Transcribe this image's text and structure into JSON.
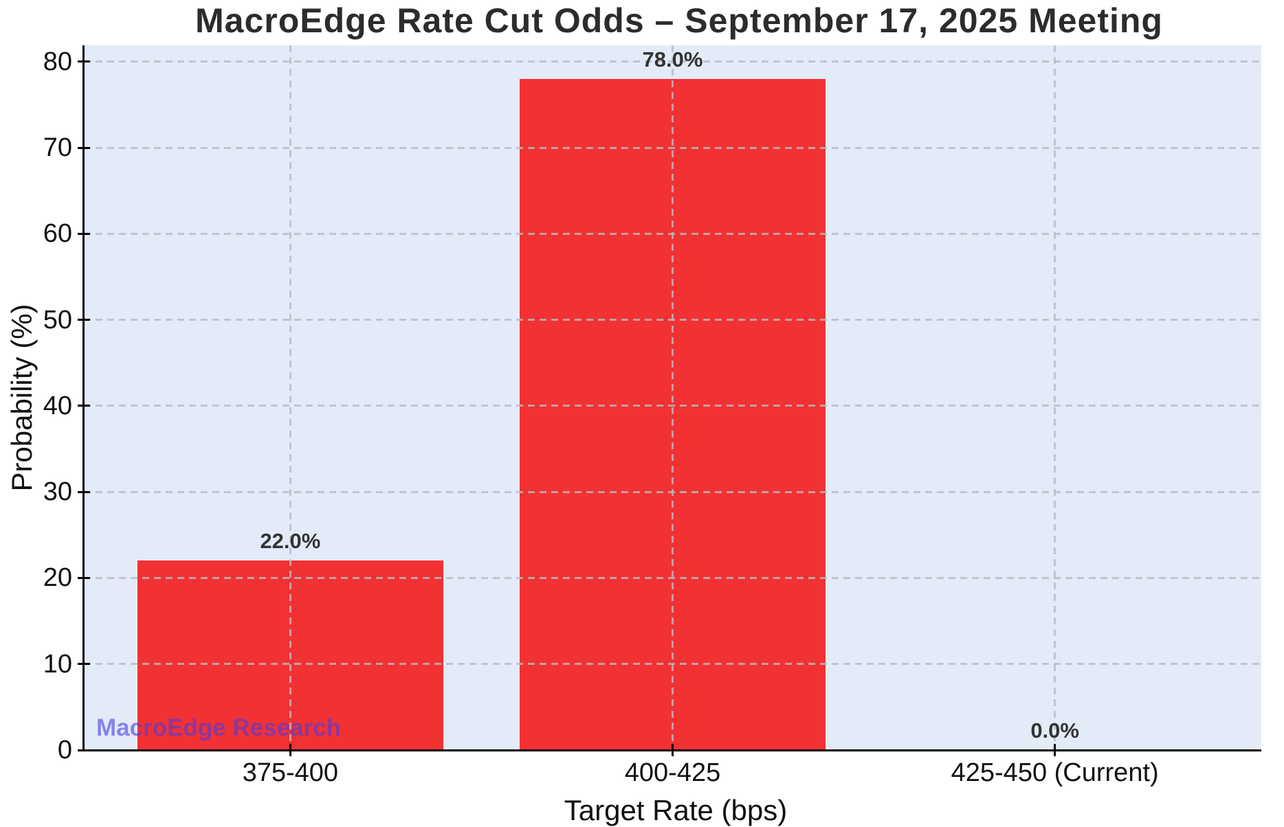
{
  "title": "MacroEdge Rate Cut Odds – September 17, 2025 Meeting",
  "watermark": {
    "text": "MacroEdge Research",
    "color": "rgba(72,60,228,0.6)"
  },
  "chart_data": {
    "type": "bar",
    "title": "MacroEdge Rate Cut Odds – September 17, 2025 Meeting",
    "categories": [
      "375-400",
      "400-425",
      "425-450 (Current)"
    ],
    "values": [
      22.0,
      78.0,
      0.0
    ],
    "value_labels": [
      "22.0%",
      "78.0%",
      "0.0%"
    ],
    "xlabel": "Target Rate (bps)",
    "ylabel": "Probability (%)",
    "yticks": [
      0,
      10,
      20,
      30,
      40,
      50,
      60,
      70,
      80
    ],
    "ylim": [
      0,
      81.9
    ],
    "grid": true,
    "legend": "none",
    "bar_color": "#F23132",
    "plot_bg_color": "#E3EBF9",
    "grid_color": "rgba(185,186,192,0.8)",
    "spine_color": "#000000",
    "annotation": "MacroEdge Research"
  }
}
